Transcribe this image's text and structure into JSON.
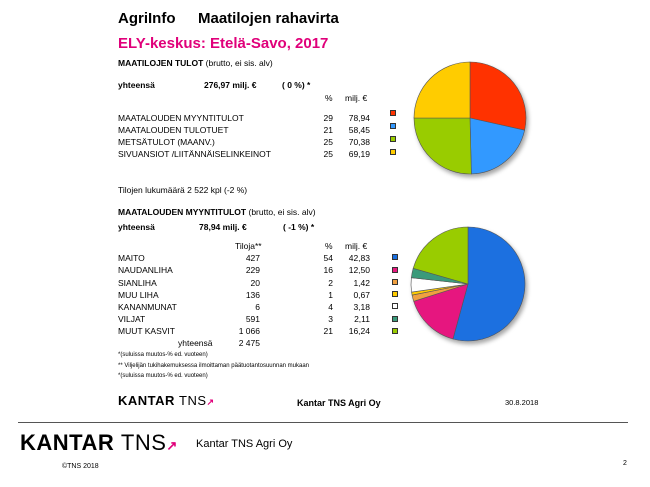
{
  "header": {
    "title_left": "AgriInfo",
    "title_right": "Maatilojen rahavirta",
    "subtitle": "ELY-keskus: Etelä-Savo, 2017"
  },
  "income": {
    "heading_bold": "MAATILOJEN TULOT",
    "heading_normal": " (brutto, ei sis. alv)",
    "total_label": "yhteensä",
    "total_value": "276,97 milj. €",
    "total_change": "( 0 %) *",
    "col_pct": "%",
    "col_eur": "milj. €",
    "rows": [
      {
        "label": "MAATALOUDEN MYYNTITULOT",
        "pct": "29",
        "eur": "78,94",
        "color": "#ff3300"
      },
      {
        "label": "MAATALOUDEN TULOTUET",
        "pct": "21",
        "eur": "58,45",
        "color": "#3399ff"
      },
      {
        "label": "METSÄTULOT (MAANV.)",
        "pct": "25",
        "eur": "70,38",
        "color": "#99cc00"
      },
      {
        "label": "SIVUANSIOT /LIITÄNNÄISELINKEINOT",
        "pct": "25",
        "eur": "69,19",
        "color": "#ffcc00"
      }
    ],
    "farm_count": "Tilojen lukumäärä 2 522 kpl  (-2 %)"
  },
  "sales": {
    "heading_bold": "MAATALOUDEN MYYNTITULOT",
    "heading_normal": " (brutto, ei sis. alv)",
    "total_label": "yhteensä",
    "total_value": "78,94 milj. €",
    "total_change": "( -1 %) *",
    "col_farms": "Tiloja**",
    "col_pct": "%",
    "col_eur": "milj. €",
    "rows": [
      {
        "label": "MAITO",
        "farms": "427",
        "pct": "54",
        "eur": "42,83",
        "color": "#1a6fe0"
      },
      {
        "label": "NAUDANLIHA",
        "farms": "229",
        "pct": "16",
        "eur": "12,50",
        "color": "#e6197f"
      },
      {
        "label": "SIANLIHA",
        "farms": "20",
        "pct": "2",
        "eur": "1,42",
        "color": "#f0a040"
      },
      {
        "label": "MUU LIHA",
        "farms": "136",
        "pct": "1",
        "eur": "0,67",
        "color": "#ffcc00"
      },
      {
        "label": "KANANMUNAT",
        "farms": "6",
        "pct": "4",
        "eur": "3,18",
        "color": "#ffffff"
      },
      {
        "label": "VILJAT",
        "farms": "591",
        "pct": "3",
        "eur": "2,11",
        "color": "#3a9a7a"
      },
      {
        "label": "MUUT KASVIT",
        "farms": "1 066",
        "pct": "21",
        "eur": "16,24",
        "color": "#99cc00"
      }
    ],
    "sum_label": "yhteensä",
    "sum_farms": "2 475"
  },
  "footnotes": {
    "f1": "*(suluissa muutos-% ed. vuoteen)",
    "f2": "** Viljelijän tukihakemuksessa ilmoittaman päätuotantosuunnan mukaan",
    "f3": "*(suluissa muutos-% ed. vuoteen)"
  },
  "inner_footer": {
    "logo_a": "KANTAR",
    "logo_b": "TNS",
    "company": "Kantar TNS Agri Oy",
    "date": "30.8.2018"
  },
  "page_footer": {
    "logo_a": "KANTAR",
    "logo_b": "TNS",
    "company": "Kantar TNS Agri Oy",
    "copyright": "©TNS 2018",
    "page_number": "2"
  },
  "chart_data": [
    {
      "type": "pie",
      "categories": [
        "MAATALOUDEN MYYNTITULOT",
        "MAATALOUDEN TULOTUET",
        "METSÄTULOT (MAANV.)",
        "SIVUANSIOT /LIITÄNNÄISELINKEINOT"
      ],
      "values": [
        78.94,
        58.45,
        70.38,
        69.19
      ],
      "colors": [
        "#ff3300",
        "#3399ff",
        "#99cc00",
        "#ffcc00"
      ],
      "legend": "left"
    },
    {
      "type": "pie",
      "categories": [
        "MAITO",
        "NAUDANLIHA",
        "SIANLIHA",
        "MUU LIHA",
        "KANANMUNAT",
        "VILJAT",
        "MUUT KASVIT"
      ],
      "values": [
        42.83,
        12.5,
        1.42,
        0.67,
        3.18,
        2.11,
        16.24
      ],
      "colors": [
        "#1a6fe0",
        "#e6197f",
        "#f0a040",
        "#ffcc00",
        "#ffffff",
        "#3a9a7a",
        "#99cc00"
      ],
      "legend": "left"
    }
  ]
}
